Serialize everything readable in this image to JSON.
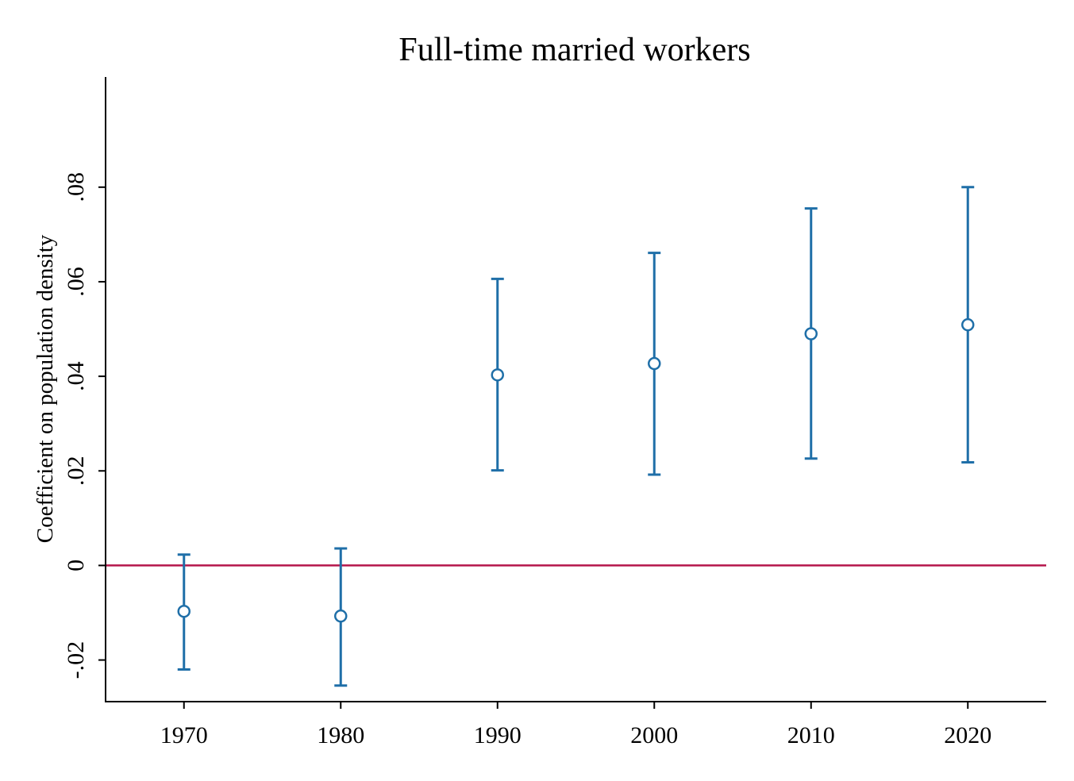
{
  "chart_data": {
    "type": "scatter",
    "title": "Full-time married workers",
    "xlabel": "",
    "ylabel": "Coefficient on population density",
    "x_ticks": [
      {
        "value": 1970,
        "label": "1970"
      },
      {
        "value": 1980,
        "label": "1980"
      },
      {
        "value": 1990,
        "label": "1990"
      },
      {
        "value": 2000,
        "label": "2000"
      },
      {
        "value": 2010,
        "label": "2010"
      },
      {
        "value": 2020,
        "label": "2020"
      }
    ],
    "y_ticks": [
      {
        "value": -0.02,
        "label": "-.02"
      },
      {
        "value": 0,
        "label": "0"
      },
      {
        "value": 0.02,
        "label": ".02"
      },
      {
        "value": 0.04,
        "label": ".04"
      },
      {
        "value": 0.06,
        "label": ".06"
      },
      {
        "value": 0.08,
        "label": ".08"
      }
    ],
    "xlim": [
      1965,
      2025
    ],
    "ylim": [
      -0.0288,
      0.1033
    ],
    "grid": false,
    "reference_line": {
      "y": 0,
      "color": "#b5164b"
    },
    "series": [
      {
        "color": "#1f6fa8",
        "marker": "hollow-circle",
        "points": [
          {
            "x": 1970,
            "y": -0.0097,
            "lo": -0.022,
            "hi": 0.0023
          },
          {
            "x": 1980,
            "y": -0.0107,
            "lo": -0.0254,
            "hi": 0.0036
          },
          {
            "x": 1990,
            "y": 0.0403,
            "lo": 0.0201,
            "hi": 0.0606
          },
          {
            "x": 2000,
            "y": 0.0427,
            "lo": 0.0192,
            "hi": 0.0661
          },
          {
            "x": 2010,
            "y": 0.049,
            "lo": 0.0226,
            "hi": 0.0755
          },
          {
            "x": 2020,
            "y": 0.0509,
            "lo": 0.0218,
            "hi": 0.08
          }
        ]
      }
    ]
  }
}
